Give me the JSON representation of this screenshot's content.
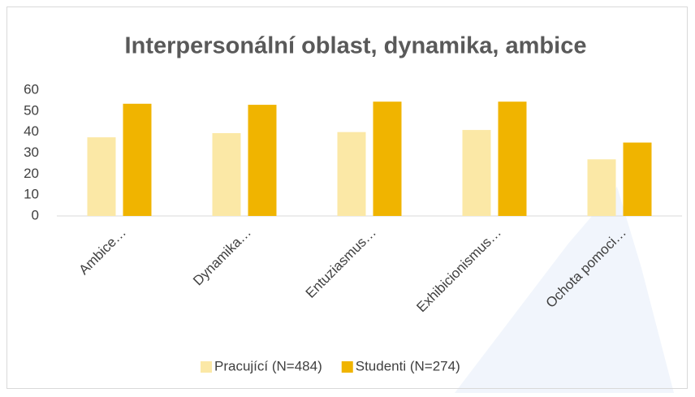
{
  "chart_data": {
    "type": "bar",
    "title": "Interpersonální oblast, dynamika, ambice",
    "categories": [
      "Ambice…",
      "Dynamika…",
      "Entuziasmus…",
      "Exhibicionismus…",
      "Ochota pomoci…"
    ],
    "series": [
      {
        "name": "Pracující (N=484)",
        "color": "#fbe8a6",
        "values": [
          37.5,
          39.5,
          40,
          41,
          27
        ]
      },
      {
        "name": "Studenti (N=274)",
        "color": "#f0b400",
        "values": [
          53.5,
          53,
          54.5,
          54.5,
          35
        ]
      }
    ],
    "ylim": [
      0,
      60
    ],
    "yticks": [
      0,
      10,
      20,
      30,
      40,
      50,
      60
    ],
    "grid": false,
    "legend": "bottom"
  }
}
